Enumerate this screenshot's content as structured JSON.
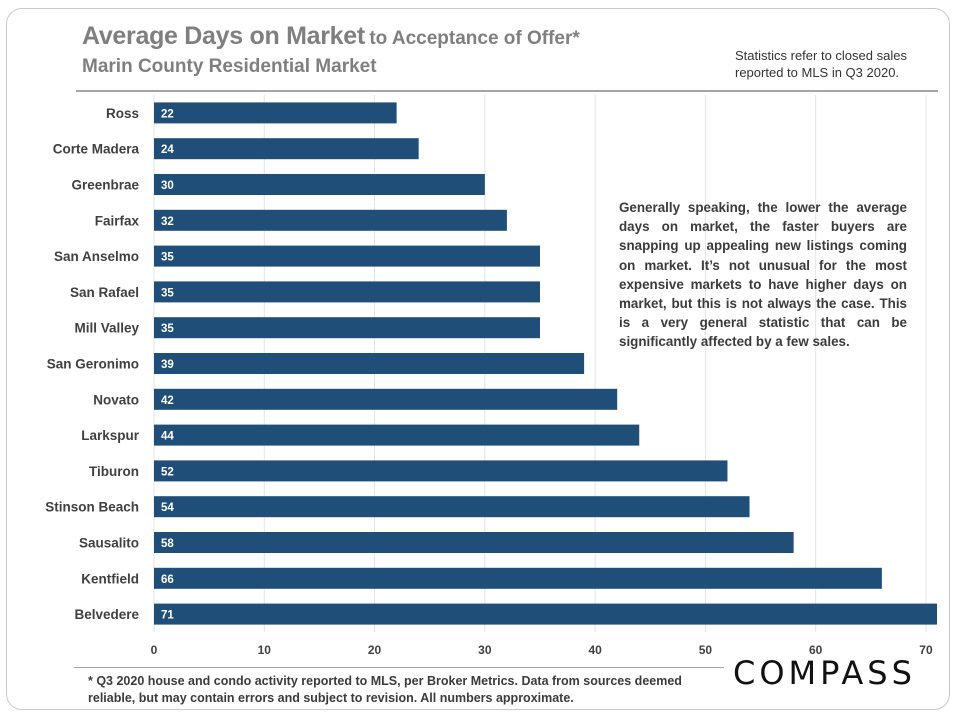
{
  "header": {
    "title_main": "Average Days on Market",
    "title_sub": "to Acceptance of Offer*",
    "subtitle": "Marin County Residential Market",
    "stat_note": "Statistics refer to closed sales reported to MLS in Q3 2020."
  },
  "annotation": "Generally speaking, the lower the average days on market, the faster buyers are snapping up appealing new listings coming on market. It’s not unusual for the most expensive markets to have higher days on market, but this is not always the case. This is a very general statistic that can be significantly affected by a few sales.",
  "footnote": "* Q3 2020 house and condo activity reported to MLS, per Broker Metrics. Data from sources deemed reliable, but may contain errors and subject to revision. All numbers approximate.",
  "brand": {
    "logo_text": "COMPASS"
  },
  "colors": {
    "bar": "#1f4e79",
    "grid": "#e3e3e3",
    "text": "#404040"
  },
  "chart_data": {
    "type": "bar",
    "orientation": "horizontal",
    "title": "Average Days on Market to Acceptance of Offer*",
    "subtitle": "Marin County Residential Market",
    "xlabel": "",
    "ylabel": "",
    "categories": [
      "Ross",
      "Corte Madera",
      "Greenbrae",
      "Fairfax",
      "San Anselmo",
      "San Rafael",
      "Mill Valley",
      "San Geronimo",
      "Novato",
      "Larkspur",
      "Tiburon",
      "Stinson Beach",
      "Sausalito",
      "Kentfield",
      "Belvedere"
    ],
    "values": [
      22,
      24,
      30,
      32,
      35,
      35,
      35,
      39,
      42,
      44,
      52,
      54,
      58,
      66,
      71
    ],
    "xlim": [
      0,
      71
    ],
    "xticks": [
      0,
      10,
      20,
      30,
      40,
      50,
      60,
      70
    ],
    "grid": true,
    "data_labels": true
  }
}
